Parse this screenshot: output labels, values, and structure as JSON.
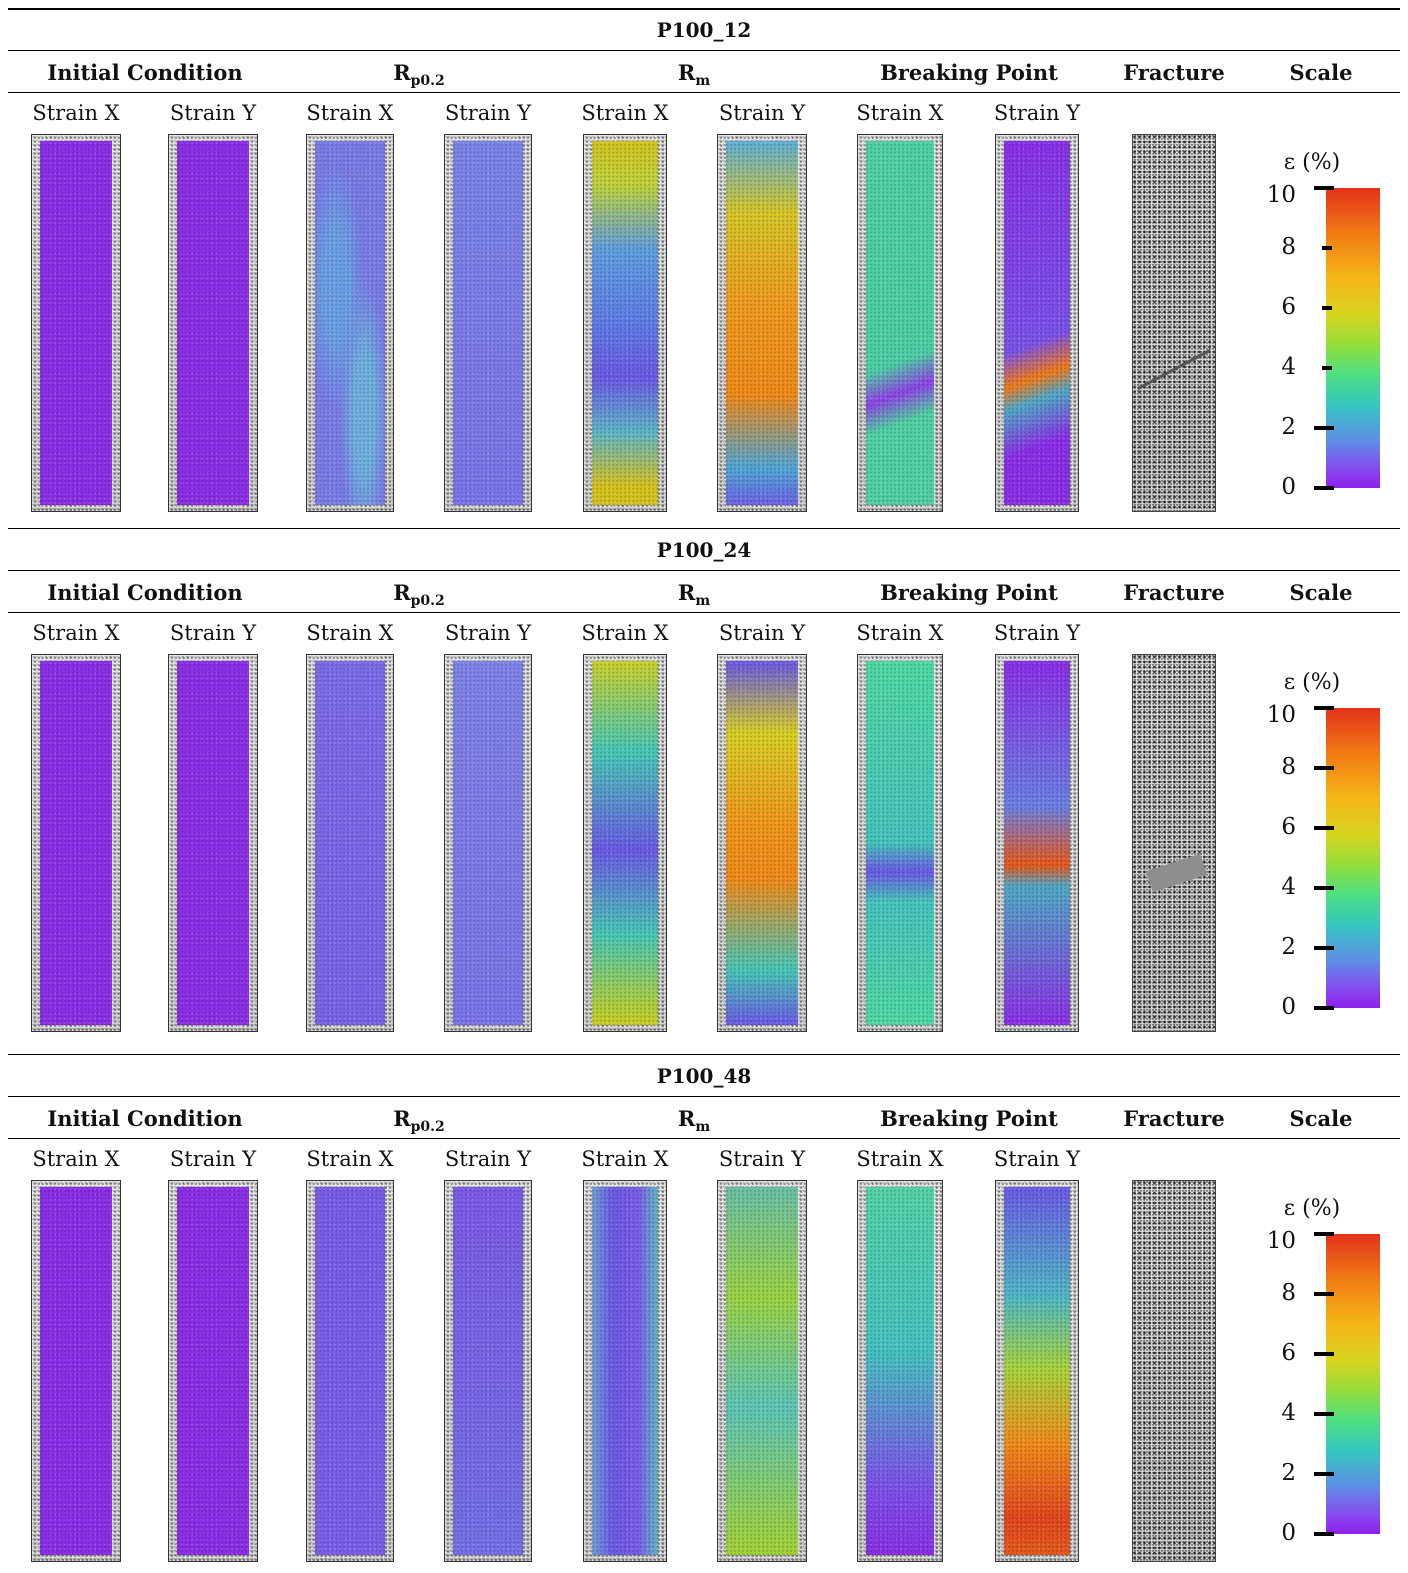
{
  "sections": [
    {
      "title": "P100_12",
      "headers": {
        "initial": "Initial Condition",
        "rp_main": "R",
        "rp_sub": "p0.2",
        "rm_main": "R",
        "rm_sub": "m",
        "breaking": "Breaking Point",
        "fracture": "Fracture",
        "scale": "Scale"
      },
      "subheaders": [
        "Strain X",
        "Strain Y",
        "Strain X",
        "Strain Y",
        "Strain X",
        "Strain Y",
        "Strain X",
        "Strain Y"
      ],
      "scale": {
        "label": "ε (%)",
        "ticks": [
          "10",
          "8",
          "6",
          "4",
          "2",
          "0"
        ]
      }
    },
    {
      "title": "P100_24",
      "headers": {
        "initial": "Initial Condition",
        "rp_main": "R",
        "rp_sub": "p0.2",
        "rm_main": "R",
        "rm_sub": "m",
        "breaking": "Breaking Point",
        "fracture": "Fracture",
        "scale": "Scale"
      },
      "subheaders": [
        "Strain X",
        "Strain Y",
        "Strain X",
        "Strain Y",
        "Strain X",
        "Strain Y",
        "Strain X",
        "Strain Y"
      ],
      "scale": {
        "label": "ε (%)",
        "ticks": [
          "10",
          "8",
          "6",
          "4",
          "2",
          "0"
        ]
      }
    },
    {
      "title": "P100_48",
      "headers": {
        "initial": "Initial Condition",
        "rp_main": "R",
        "rp_sub": "p0.2",
        "rm_main": "R",
        "rm_sub": "m",
        "breaking": "Breaking Point",
        "fracture": "Fracture",
        "scale": "Scale"
      },
      "subheaders": [
        "Strain X",
        "Strain Y",
        "Strain X",
        "Strain Y",
        "Strain X",
        "Strain Y",
        "Strain X",
        "Strain Y"
      ],
      "scale": {
        "label": "ε (%)",
        "ticks": [
          "10",
          "8",
          "6",
          "4",
          "2",
          "0"
        ]
      }
    }
  ],
  "colors": {
    "purple": "#8a2ee8",
    "blue": "#6f7fe6",
    "cyan": "#39c3bf",
    "green": "#4fd98a",
    "yellow": "#d6d21f",
    "orange": "#f0921a",
    "red": "#e2401d"
  }
}
